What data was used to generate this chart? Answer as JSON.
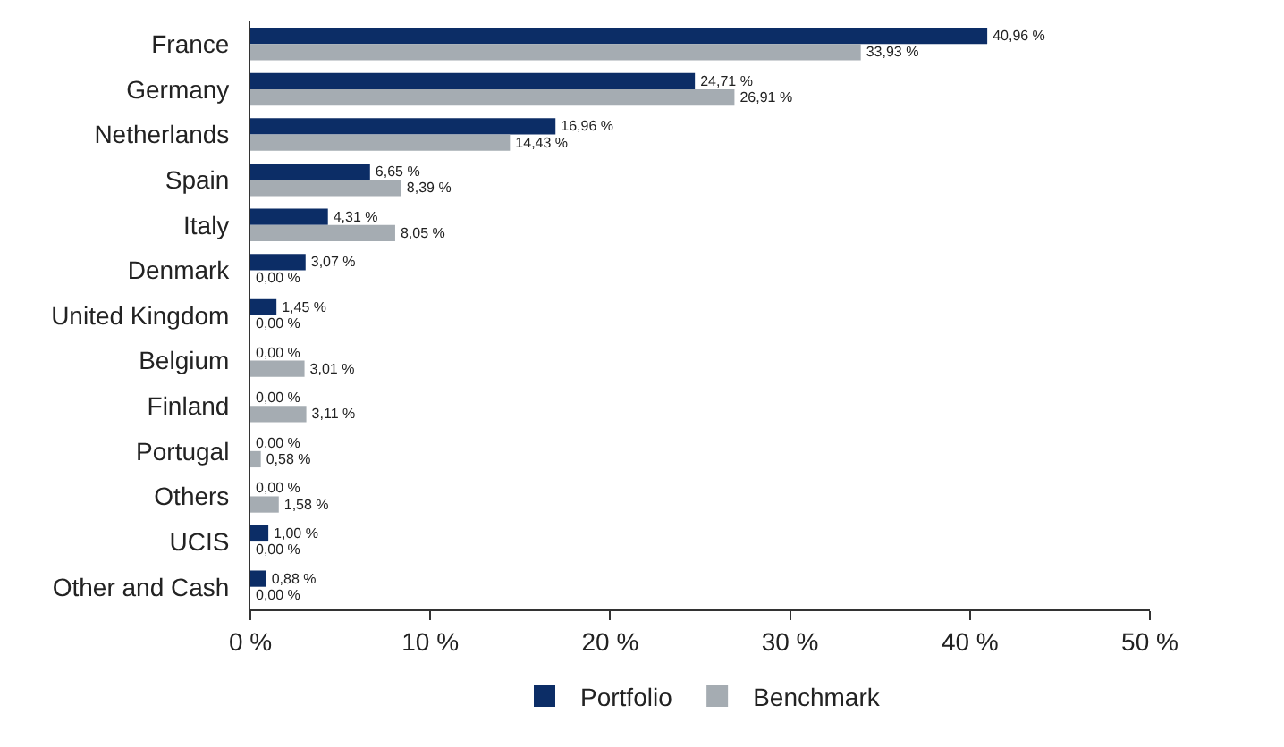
{
  "chart_data": {
    "type": "bar",
    "orientation": "horizontal",
    "categories": [
      "France",
      "Germany",
      "Netherlands",
      "Spain",
      "Italy",
      "Denmark",
      "United Kingdom",
      "Belgium",
      "Finland",
      "Portugal",
      "Others",
      "UCIS",
      "Other and Cash"
    ],
    "series": [
      {
        "name": "Portfolio",
        "color": "#0c2d66",
        "values": [
          40.96,
          24.71,
          16.96,
          6.65,
          4.31,
          3.07,
          1.45,
          0.0,
          0.0,
          0.0,
          0.0,
          1.0,
          0.88
        ],
        "value_labels": [
          "40,96 %",
          "24,71 %",
          "16,96 %",
          "6,65 %",
          "4,31 %",
          "3,07 %",
          "1,45 %",
          "0,00 %",
          "0,00 %",
          "0,00 %",
          "0,00 %",
          "1,00 %",
          "0,88 %"
        ]
      },
      {
        "name": "Benchmark",
        "color": "#a5acb2",
        "values": [
          33.93,
          26.91,
          14.43,
          8.39,
          8.05,
          0.0,
          0.0,
          3.01,
          3.11,
          0.58,
          1.58,
          0.0,
          0.0
        ],
        "value_labels": [
          "33,93 %",
          "26,91 %",
          "14,43 %",
          "8,39 %",
          "8,05 %",
          "0,00 %",
          "0,00 %",
          "3,01 %",
          "3,11 %",
          "0,58 %",
          "1,58 %",
          "0,00 %",
          "0,00 %"
        ]
      }
    ],
    "xlim": [
      0,
      50
    ],
    "xticks": [
      {
        "value": 0,
        "label": "0 %"
      },
      {
        "value": 10,
        "label": "10 %"
      },
      {
        "value": 20,
        "label": "20 %"
      },
      {
        "value": 30,
        "label": "30 %"
      },
      {
        "value": 40,
        "label": "40 %"
      },
      {
        "value": 50,
        "label": "50 %"
      }
    ],
    "legend": "bottom"
  }
}
